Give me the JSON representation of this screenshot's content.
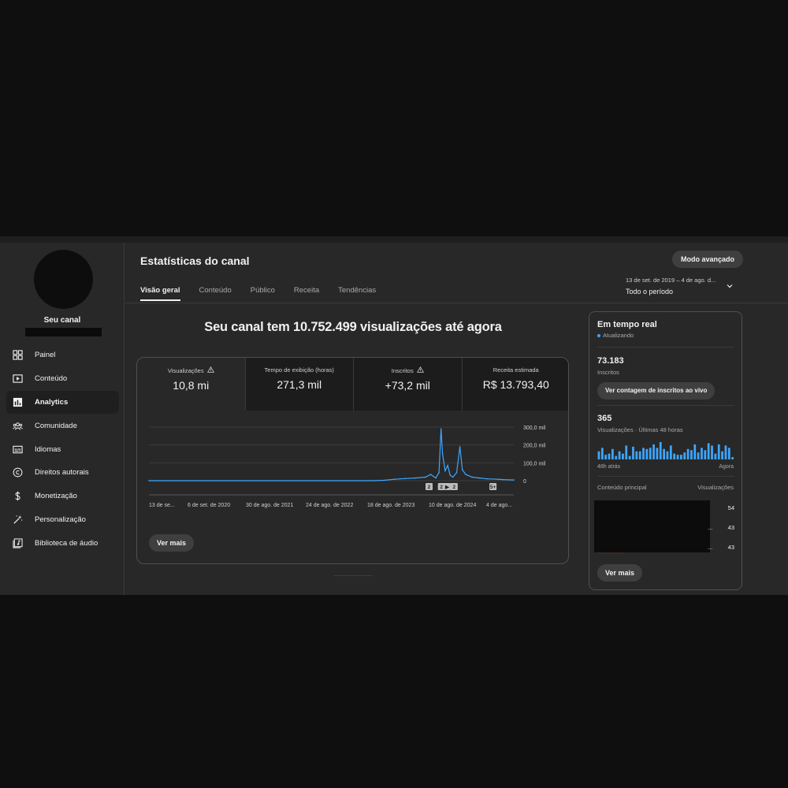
{
  "sidebar": {
    "channel_name": "Seu canal",
    "items": [
      {
        "label": "Painel",
        "icon": "dashboard-icon"
      },
      {
        "label": "Conteúdo",
        "icon": "content-icon"
      },
      {
        "label": "Analytics",
        "icon": "analytics-icon",
        "active": true
      },
      {
        "label": "Comunidade",
        "icon": "community-icon"
      },
      {
        "label": "Idiomas",
        "icon": "subtitles-icon"
      },
      {
        "label": "Direitos autorais",
        "icon": "copyright-icon"
      },
      {
        "label": "Monetização",
        "icon": "dollar-icon"
      },
      {
        "label": "Personalização",
        "icon": "magic-wand-icon"
      },
      {
        "label": "Biblioteca de áudio",
        "icon": "audio-library-icon"
      }
    ]
  },
  "header": {
    "title": "Estatísticas do canal",
    "advanced_button": "Modo avançado",
    "date_range": "13 de set. de 2019 – 4 de ago. d...",
    "period": "Todo o período",
    "tabs": [
      {
        "label": "Visão geral",
        "active": true
      },
      {
        "label": "Conteúdo"
      },
      {
        "label": "Público"
      },
      {
        "label": "Receita"
      },
      {
        "label": "Tendências"
      }
    ]
  },
  "overview": {
    "headline": "Seu canal tem 10.752.499 visualizações até agora",
    "metrics": [
      {
        "label": "Visualizações",
        "value": "10,8 mi",
        "warning": true
      },
      {
        "label": "Tempo de exibição (horas)",
        "value": "271,3 mil"
      },
      {
        "label": "Inscritos",
        "value": "+73,2 mil",
        "warning": true
      },
      {
        "label": "Receita estimada",
        "value": "R$ 13.793,40"
      }
    ],
    "see_more": "Ver mais"
  },
  "chart_data": {
    "type": "line",
    "series": [
      {
        "values": [
          {
            "x": "2019-09-13",
            "y": 0
          },
          {
            "x": "2023-05-01",
            "y": 0
          },
          {
            "x": "2023-07-01",
            "y": 2000
          },
          {
            "x": "2023-09-01",
            "y": 8000
          },
          {
            "x": "2023-11-01",
            "y": 12000
          },
          {
            "x": "2024-01-01",
            "y": 15000
          },
          {
            "x": "2024-03-01",
            "y": 20000
          },
          {
            "x": "2024-04-01",
            "y": 35000
          },
          {
            "x": "2024-05-01",
            "y": 15000
          },
          {
            "x": "2024-05-20",
            "y": 45000
          },
          {
            "x": "2024-06-01",
            "y": 290000
          },
          {
            "x": "2024-06-10",
            "y": 150000
          },
          {
            "x": "2024-06-25",
            "y": 55000
          },
          {
            "x": "2024-07-10",
            "y": 85000
          },
          {
            "x": "2024-07-25",
            "y": 30000
          },
          {
            "x": "2024-08-10",
            "y": 20000
          },
          {
            "x": "2024-09-01",
            "y": 45000
          },
          {
            "x": "2024-09-20",
            "y": 190000
          },
          {
            "x": "2024-10-05",
            "y": 60000
          },
          {
            "x": "2024-10-25",
            "y": 35000
          },
          {
            "x": "2024-12-01",
            "y": 20000
          },
          {
            "x": "2025-01-15",
            "y": 15000
          },
          {
            "x": "2025-03-01",
            "y": 10000
          },
          {
            "x": "2025-05-01",
            "y": 8000
          },
          {
            "x": "2025-06-01",
            "y": 6000
          },
          {
            "x": "2025-08-04",
            "y": 4000
          }
        ]
      }
    ],
    "x_tick_labels": [
      "13 de se...",
      "6 de set. de 2020",
      "30 de ago. de 2021",
      "24 de ago. de 2022",
      "18 de ago. de 2023",
      "10 de ago. de 2024",
      "4 de ago..."
    ],
    "y_tick_labels": [
      "300,0 mil",
      "200,0 mil",
      "100,0 mil",
      "0"
    ],
    "ylim": [
      0,
      300000
    ],
    "markers": [
      {
        "x": "2024-03-20",
        "label": "2"
      },
      {
        "x": "2024-06-01",
        "label": "2"
      },
      {
        "x": "2024-07-05",
        "label": "▶"
      },
      {
        "x": "2024-08-15",
        "label": "2"
      },
      {
        "x": "2025-04-01",
        "label": "5+"
      }
    ],
    "line_color": "#3ea6ff",
    "grid": true
  },
  "realtime": {
    "title": "Em tempo real",
    "status": "Atualizando",
    "subscribers": "73.183",
    "subscribers_label": "Inscritos",
    "live_button": "Ver contagem de inscritos ao vivo",
    "views": "365",
    "views_label": "Visualizações · Últimas 48 horas",
    "hourly_views": [
      7,
      10,
      4,
      5,
      9,
      3,
      7,
      5,
      12,
      3,
      11,
      7,
      7,
      10,
      9,
      10,
      13,
      10,
      15,
      9,
      7,
      12,
      5,
      4,
      4,
      6,
      9,
      8,
      13,
      6,
      10,
      8,
      14,
      12,
      5,
      13,
      7,
      12,
      10,
      2
    ],
    "axis_start": "48h atrás",
    "axis_end": "Agora",
    "top_content_header": "Conteúdo principal",
    "views_header": "Visualizações",
    "top_rows": [
      {
        "title": "",
        "views": "54"
      },
      {
        "title": "...",
        "views": "43"
      },
      {
        "title": "...",
        "views": "43"
      }
    ],
    "see_more": "Ver mais"
  }
}
